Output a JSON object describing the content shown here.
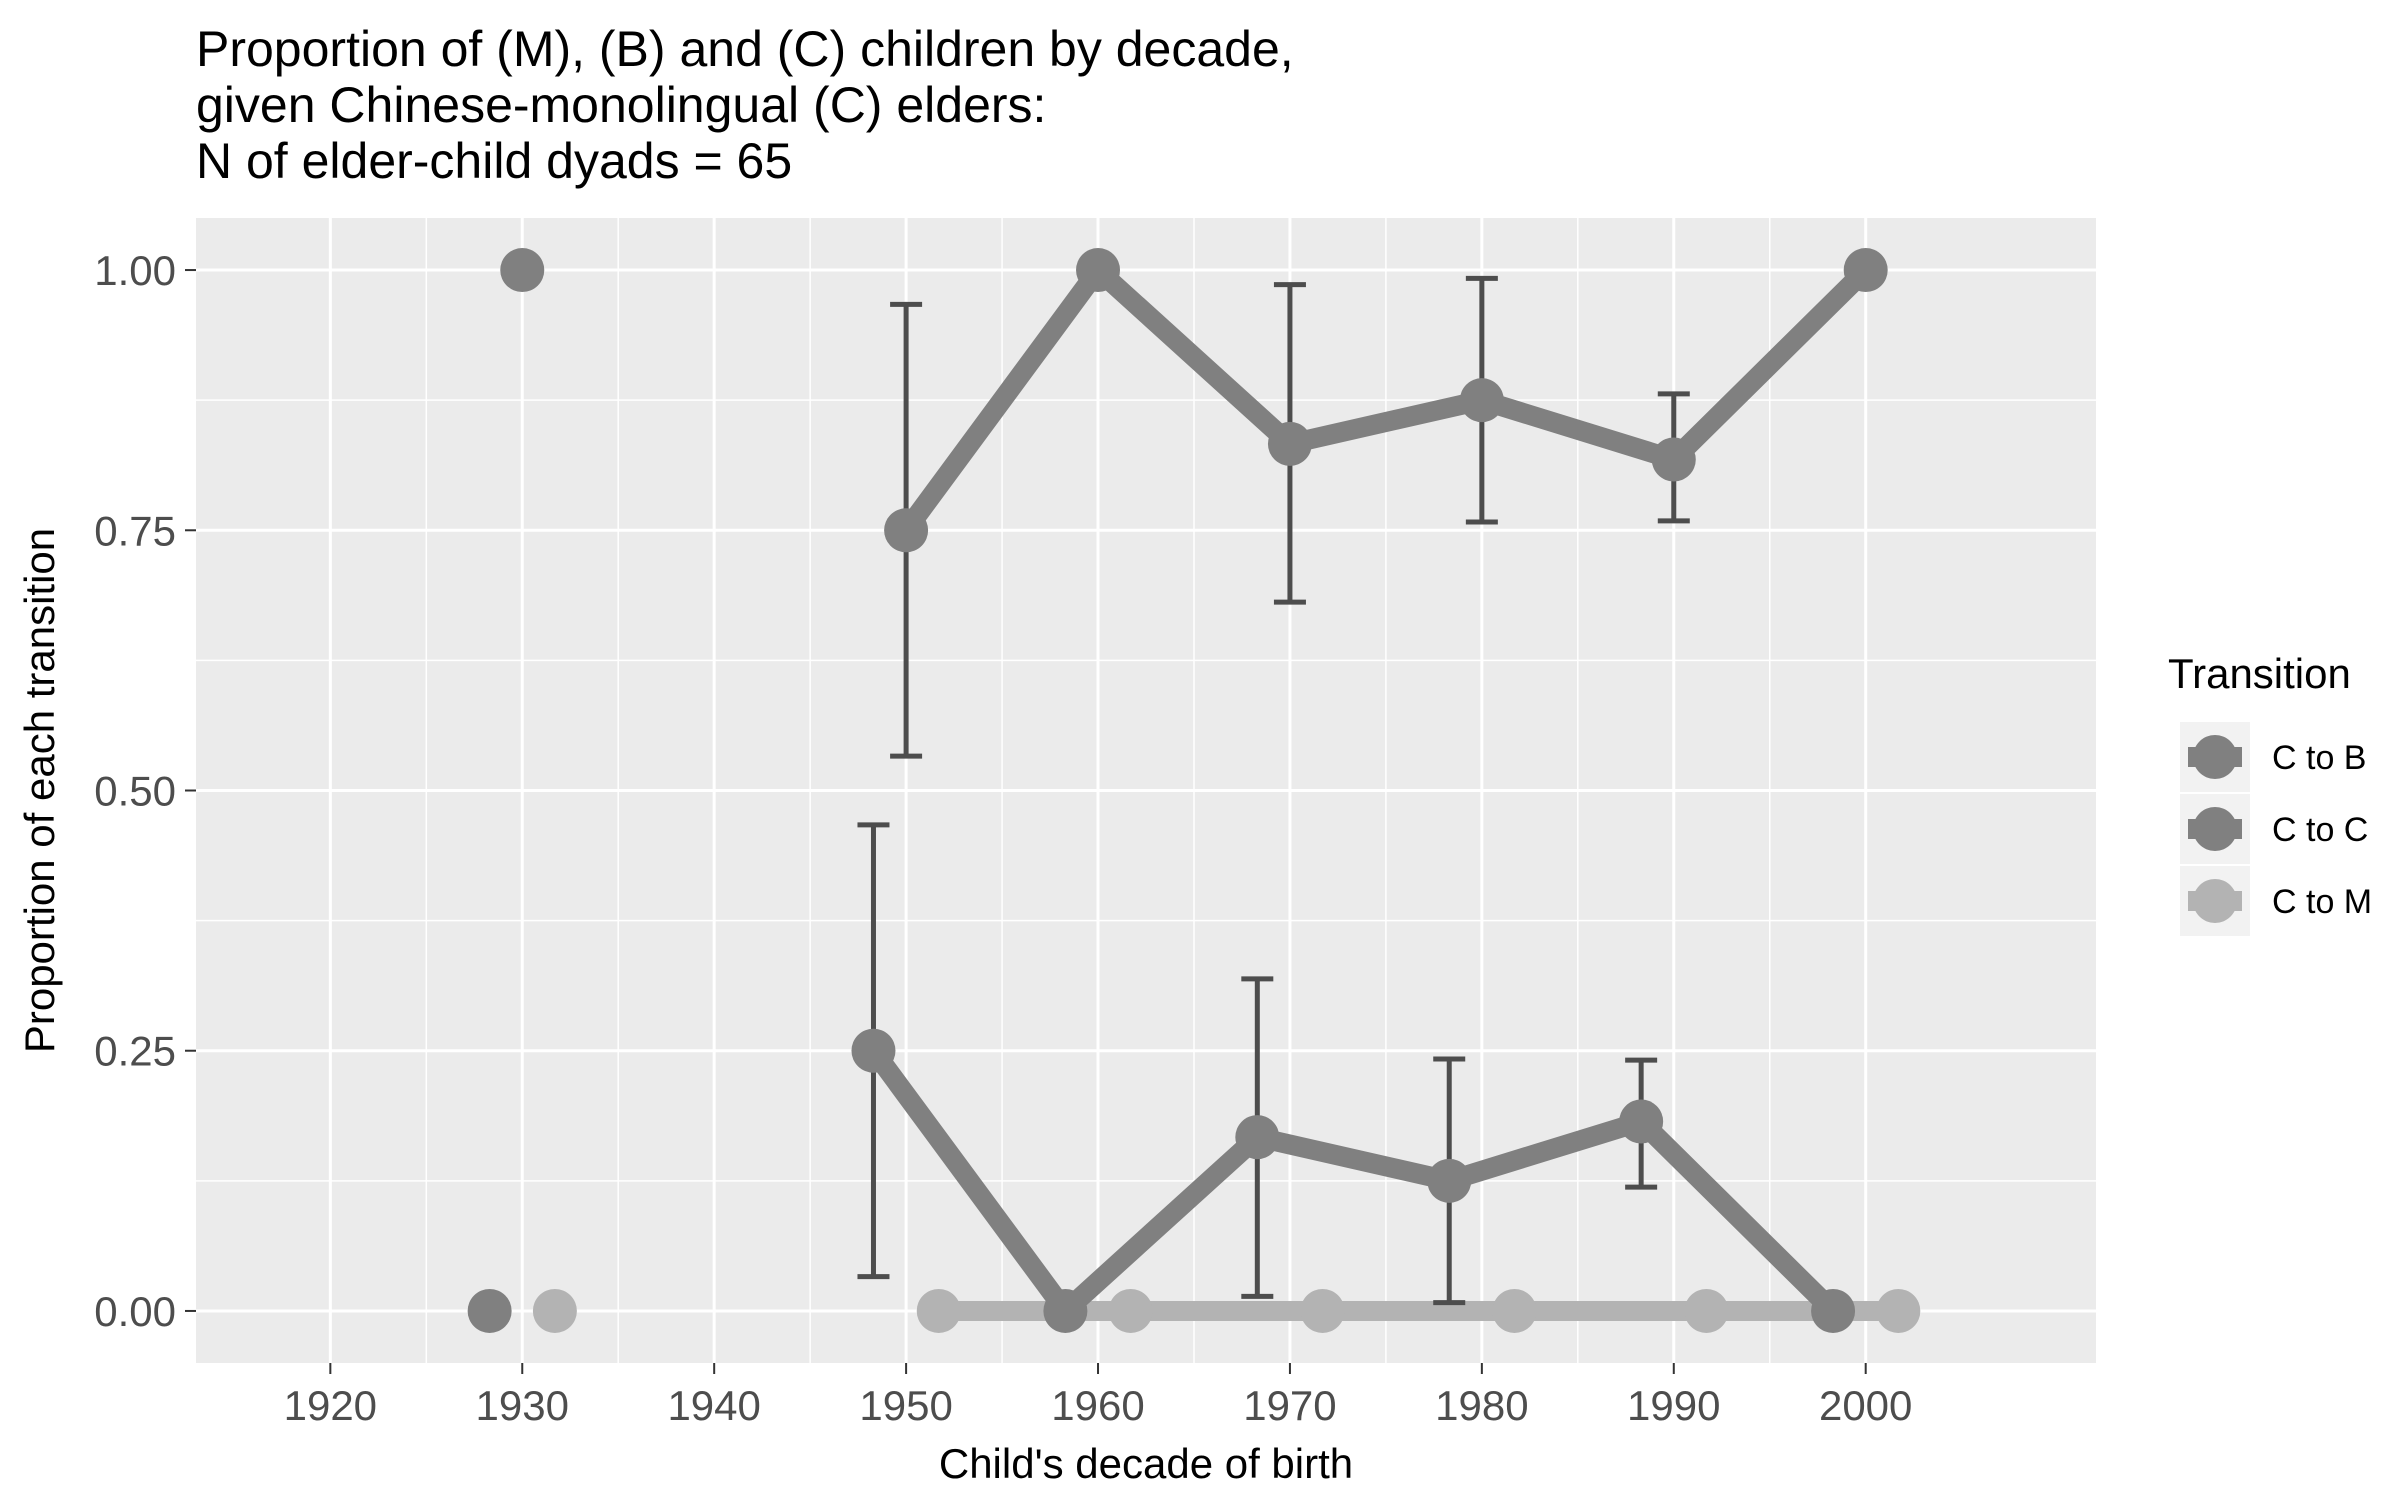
{
  "chart_data": {
    "type": "line",
    "title_lines": [
      "Proportion of (M), (B) and (C) children by decade,",
      "given Chinese-monolingual (C) elders:",
      "N of elder-child dyads = 65"
    ],
    "xlabel": "Child's decade of birth",
    "ylabel": "Proportion of each transition",
    "xlim": [
      1913,
      2012
    ],
    "ylim": [
      -0.05,
      1.05
    ],
    "x_ticks": [
      1920,
      1930,
      1940,
      1950,
      1960,
      1970,
      1980,
      1990,
      2000
    ],
    "x_tick_labels": [
      "1920",
      "1930",
      "1940",
      "1950",
      "1960",
      "1970",
      "1980",
      "1990",
      "2000"
    ],
    "y_ticks": [
      0,
      0.25,
      0.5,
      0.75,
      1
    ],
    "y_tick_labels": [
      "0.00",
      "0.25",
      "0.50",
      "0.75",
      "1.00"
    ],
    "grid": true,
    "legend_position": "right",
    "legend_title": "Transition",
    "background_color": "#ebebeb",
    "grid_color": "#ffffff",
    "errorbar_color": "#4d4d4d",
    "series": [
      {
        "name": "C to B",
        "color": "#808080",
        "dodge": 0,
        "x": [
          1930,
          1950,
          1960,
          1970,
          1980,
          1990,
          2000
        ],
        "y": [
          1.0,
          0.75,
          1.0,
          0.833,
          0.875,
          0.818,
          1.0
        ],
        "connect_from": 1,
        "errors": [
          null,
          [
            0.533,
            0.967
          ],
          null,
          [
            0.681,
            0.986
          ],
          [
            0.758,
            0.992
          ],
          [
            0.759,
            0.881
          ],
          null
        ]
      },
      {
        "name": "C to C",
        "color": "#808080",
        "dodge": -1.7,
        "x": [
          1930,
          1950,
          1960,
          1970,
          1980,
          1990,
          2000
        ],
        "y": [
          0.0,
          0.25,
          0.0,
          0.167,
          0.125,
          0.182,
          0.0
        ],
        "connect_from": 1,
        "errors": [
          null,
          [
            0.033,
            0.467
          ],
          null,
          [
            0.014,
            0.319
          ],
          [
            0.008,
            0.242
          ],
          [
            0.119,
            0.241
          ],
          null
        ]
      },
      {
        "name": "C to M",
        "color": "#b3b3b3",
        "dodge": 1.7,
        "x": [
          1930,
          1950,
          1960,
          1970,
          1980,
          1990,
          2000
        ],
        "y": [
          0.0,
          0.0,
          0.0,
          0.0,
          0.0,
          0.0,
          0.0
        ],
        "connect_from": 1,
        "errors": [
          null,
          null,
          null,
          null,
          null,
          null,
          null
        ]
      }
    ]
  }
}
